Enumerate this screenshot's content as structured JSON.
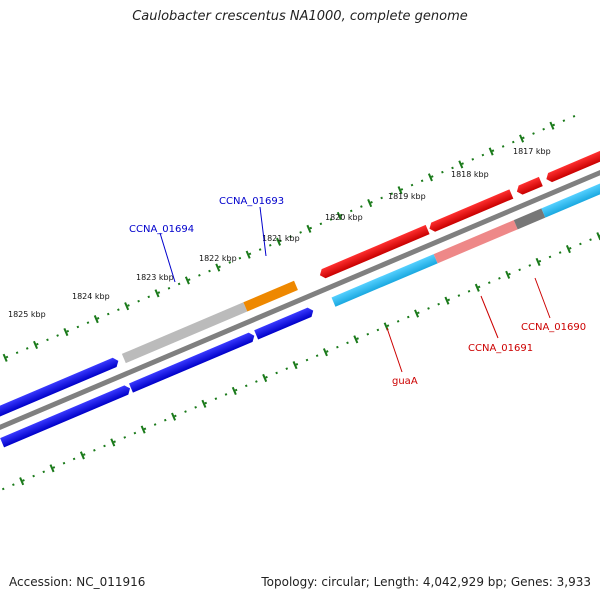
{
  "title": "Caulobacter crescentus NA1000, complete genome",
  "footer": {
    "accession": "Accession: NC_011916",
    "summary": "Topology: circular; Length: 4,042,929 bp; Genes: 3,933"
  },
  "kbp_labels": [
    "1817 kbp",
    "1818 kbp",
    "1819 kbp",
    "1820 kbp",
    "1821 kbp",
    "1822 kbp",
    "1823 kbp",
    "1824 kbp",
    "1825 kbp"
  ],
  "gene_labels": [
    "CCNA_01693",
    "CCNA_01694",
    "CCNA_01690",
    "CCNA_01691",
    "guaA"
  ],
  "colors": {
    "backbone": "#808080",
    "tick": "#1a7a1a",
    "blue": "#0000dd",
    "red": "#dd0000",
    "cyan": "#22b8e8",
    "orange": "#ee8800",
    "gray": "#bbbbbb",
    "pink": "#ee8888",
    "darkgray": "#777777",
    "label_blue": "#0000cc",
    "label_red": "#cc0000"
  }
}
